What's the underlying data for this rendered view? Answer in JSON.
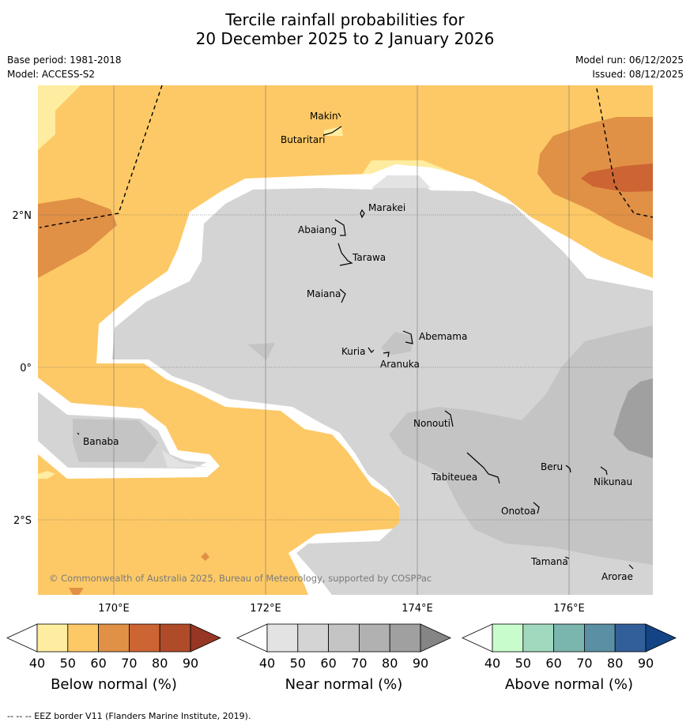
{
  "header": {
    "title_line1": "Tercile rainfall probabilities for",
    "title_line2": "20 December 2025 to 2 January 2026",
    "base_period": "Base period: 1981-2018",
    "model": "Model: ACCESS-S2",
    "model_run": "Model run: 06/12/2025",
    "issued": "Issued: 08/12/2025"
  },
  "map": {
    "lat_labels": [
      "2°N",
      "0°",
      "2°S"
    ],
    "lon_labels": [
      "170°E",
      "172°E",
      "174°E",
      "176°E"
    ],
    "places": [
      "Makin",
      "Butaritari",
      "Marakei",
      "Abaiang",
      "Tarawa",
      "Maiana",
      "Abemama",
      "Kuria",
      "Aranuka",
      "Banaba",
      "Nonouti",
      "Beru",
      "Tabiteuea",
      "Nikunau",
      "Onotoa",
      "Tamana",
      "Arorae"
    ],
    "copyright": "© Commonwealth of Australia 2025, Bureau of Meteorology, supported by COSPPac"
  },
  "colorbars": [
    {
      "title": "Below normal (%)",
      "ticks": [
        "40",
        "50",
        "60",
        "70",
        "80",
        "90"
      ],
      "colors": [
        "#ffffff",
        "#feeda0",
        "#fdc966",
        "#e09146",
        "#cc6433",
        "#b04b2a",
        "#973625"
      ]
    },
    {
      "title": "Near normal (%)",
      "ticks": [
        "40",
        "50",
        "60",
        "70",
        "80",
        "90"
      ],
      "colors": [
        "#ffffff",
        "#e3e3e3",
        "#d4d4d4",
        "#c4c4c4",
        "#b1b1b1",
        "#a0a0a0",
        "#858585"
      ]
    },
    {
      "title": "Above normal (%)",
      "ticks": [
        "40",
        "50",
        "60",
        "70",
        "80",
        "90"
      ],
      "colors": [
        "#ffffff",
        "#c9fccc",
        "#a1d9be",
        "#7ab5ae",
        "#5a8fa4",
        "#325f99",
        "#134485"
      ]
    }
  ],
  "footnote": "--  --  -- EEZ border V11 (Flanders Marine Institute, 2019)."
}
